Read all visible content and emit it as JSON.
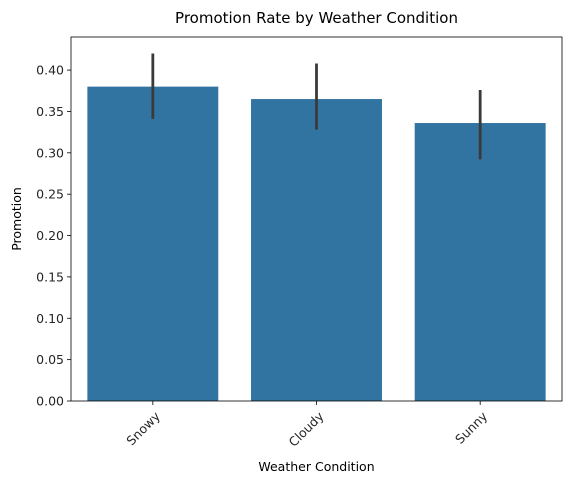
{
  "chart_data": {
    "type": "bar",
    "title": "Promotion Rate by Weather Condition",
    "xlabel": "Weather Condition",
    "ylabel": "Promotion",
    "categories": [
      "Snowy",
      "Cloudy",
      "Sunny"
    ],
    "values": [
      0.38,
      0.365,
      0.336
    ],
    "error_low": [
      0.341,
      0.328,
      0.292
    ],
    "error_high": [
      0.42,
      0.408,
      0.376
    ],
    "ylim": [
      0,
      0.44
    ],
    "yticks": [
      0.0,
      0.05,
      0.1,
      0.15,
      0.2,
      0.25,
      0.3,
      0.35,
      0.4
    ],
    "grid": false,
    "bar_color": "#3274a1",
    "error_color": "#3a3a3a"
  }
}
